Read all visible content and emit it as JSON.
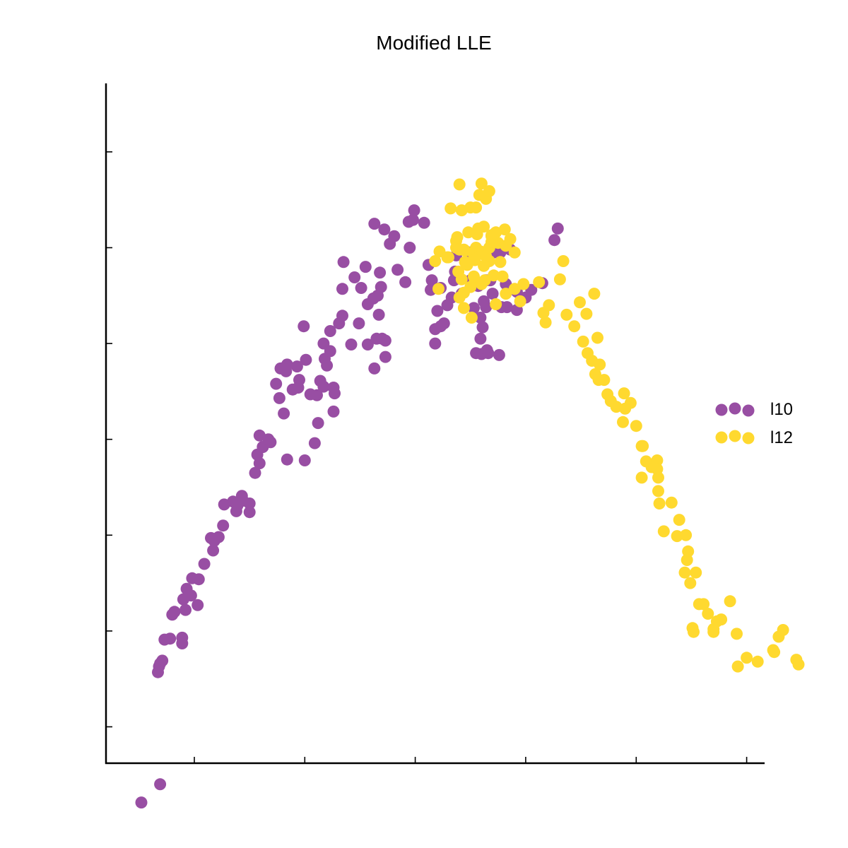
{
  "chart_data": {
    "type": "scatter",
    "title": "Modified LLE",
    "xlabel": "",
    "ylabel": "",
    "xlim": [
      -0.036,
      0.0235
    ],
    "ylim": [
      -0.0318,
      0.039
    ],
    "xticks": [
      -0.028,
      -0.018,
      -0.008,
      0.002,
      0.012,
      0.022
    ],
    "yticks": [
      -0.028,
      -0.018,
      -0.008,
      0.002,
      0.012,
      0.022,
      0.032
    ],
    "show_tick_labels": false,
    "grid": false,
    "legend_position": "right",
    "series": [
      {
        "name": "l10",
        "color": "#984ea3",
        "points": [
          [
            -0.0328,
            -0.0359
          ],
          [
            -0.0311,
            -0.034
          ],
          [
            -0.0312,
            -0.0217
          ],
          [
            -0.0313,
            -0.0223
          ],
          [
            -0.0311,
            -0.0214
          ],
          [
            -0.0309,
            -0.0211
          ],
          [
            -0.0307,
            -0.0189
          ],
          [
            -0.0302,
            -0.0188
          ],
          [
            -0.0291,
            -0.0193
          ],
          [
            -0.0291,
            -0.0187
          ],
          [
            -0.03,
            -0.0163
          ],
          [
            -0.0298,
            -0.016
          ],
          [
            -0.0288,
            -0.0158
          ],
          [
            -0.029,
            -0.0147
          ],
          [
            -0.0287,
            -0.0136
          ],
          [
            -0.0283,
            -0.0143
          ],
          [
            -0.0276,
            -0.0126
          ],
          [
            -0.0282,
            -0.0125
          ],
          [
            -0.0277,
            -0.0153
          ],
          [
            -0.0271,
            -0.011
          ],
          [
            -0.0263,
            -0.0096
          ],
          [
            -0.0262,
            -0.0086
          ],
          [
            -0.0265,
            -0.0083
          ],
          [
            -0.0258,
            -0.0082
          ],
          [
            -0.0254,
            -0.007
          ],
          [
            -0.0253,
            -0.0048
          ],
          [
            -0.0245,
            -0.0045
          ],
          [
            -0.0237,
            -0.0039
          ],
          [
            -0.0242,
            -0.0055
          ],
          [
            -0.0241,
            -0.0049
          ],
          [
            -0.0236,
            -0.0044
          ],
          [
            -0.023,
            -0.0047
          ],
          [
            -0.023,
            -0.0056
          ],
          [
            -0.0225,
            -0.0015
          ],
          [
            -0.0223,
            0.0004
          ],
          [
            -0.0218,
            0.0012
          ],
          [
            -0.0221,
            0.0024
          ],
          [
            -0.0218,
            0.0012
          ],
          [
            -0.0221,
            -0.0005
          ],
          [
            -0.0211,
            0.0017
          ],
          [
            -0.0213,
            0.002
          ],
          [
            -0.0196,
            -0.0001
          ],
          [
            -0.0199,
            0.0047
          ],
          [
            -0.0203,
            0.0063
          ],
          [
            -0.0206,
            0.0078
          ],
          [
            -0.0197,
            0.0091
          ],
          [
            -0.0196,
            0.0098
          ],
          [
            -0.0202,
            0.0094
          ],
          [
            -0.0191,
            0.0072
          ],
          [
            -0.0187,
            0.0096
          ],
          [
            -0.0179,
            0.0103
          ],
          [
            -0.0185,
            0.0082
          ],
          [
            -0.0186,
            0.0074
          ],
          [
            -0.0181,
            0.0138
          ],
          [
            -0.018,
            -0.0002
          ],
          [
            -0.0166,
            0.0081
          ],
          [
            -0.0169,
            0.0066
          ],
          [
            -0.0175,
            0.0067
          ],
          [
            -0.0168,
            0.0037
          ],
          [
            -0.0171,
            0.0016
          ],
          [
            -0.0162,
            0.0104
          ],
          [
            -0.0163,
            0.012
          ],
          [
            -0.0154,
            0.0049
          ],
          [
            -0.0153,
            0.0068
          ],
          [
            -0.0154,
            0.0074
          ],
          [
            -0.0163,
            0.0075
          ],
          [
            -0.016,
            0.0097
          ],
          [
            -0.0157,
            0.0112
          ],
          [
            -0.0157,
            0.0133
          ],
          [
            -0.0149,
            0.0141
          ],
          [
            -0.0146,
            0.0177
          ],
          [
            -0.0146,
            0.0149
          ],
          [
            -0.0145,
            0.0205
          ],
          [
            -0.0138,
            0.0119
          ],
          [
            -0.0135,
            0.0189
          ],
          [
            -0.0129,
            0.0178
          ],
          [
            -0.0131,
            0.0141
          ],
          [
            -0.0125,
            0.02
          ],
          [
            -0.0117,
            0.0245
          ],
          [
            -0.0123,
            0.0119
          ],
          [
            -0.0114,
            0.017
          ],
          [
            -0.0108,
            0.0239
          ],
          [
            -0.0118,
            0.0167
          ],
          [
            -0.0123,
            0.0161
          ],
          [
            -0.0115,
            0.0125
          ],
          [
            -0.0113,
            0.015
          ],
          [
            -0.0107,
            0.0123
          ],
          [
            -0.0112,
            0.0194
          ],
          [
            -0.0111,
            0.0179
          ],
          [
            -0.0117,
            0.0094
          ],
          [
            -0.011,
            0.0125
          ],
          [
            -0.0107,
            0.0106
          ],
          [
            -0.0099,
            0.0232
          ],
          [
            -0.0103,
            0.0224
          ],
          [
            -0.0096,
            0.0197
          ],
          [
            -0.0086,
            0.0247
          ],
          [
            -0.0089,
            0.0184
          ],
          [
            -0.0082,
            0.0249
          ],
          [
            -0.0085,
            0.022
          ],
          [
            -0.0081,
            0.0259
          ],
          [
            -0.0072,
            0.0246
          ],
          [
            -0.0068,
            0.0202
          ],
          [
            -0.0057,
            0.0178
          ],
          [
            -0.0065,
            0.0186
          ],
          [
            -0.0066,
            0.0176
          ],
          [
            -0.0062,
            0.0135
          ],
          [
            -0.0062,
            0.012
          ],
          [
            -0.0054,
            0.0141
          ],
          [
            -0.0051,
            0.016
          ],
          [
            -0.0047,
            0.0168
          ],
          [
            -0.0045,
            0.0186
          ],
          [
            -0.003,
            0.0186
          ],
          [
            -0.0038,
            0.0172
          ],
          [
            -0.0044,
            0.0195
          ],
          [
            -0.0043,
            0.0212
          ],
          [
            -0.006,
            0.0154
          ],
          [
            -0.0057,
            0.0138
          ],
          [
            -0.0027,
            0.0157
          ],
          [
            -0.0026,
            0.0184
          ],
          [
            -0.0023,
            0.018
          ],
          [
            -0.0012,
            0.0186
          ],
          [
            -0.0016,
            0.0158
          ],
          [
            -0.0016,
            0.0186
          ],
          [
            -0.0018,
            0.0164
          ],
          [
            -0.001,
            0.0172
          ],
          [
            -0.0021,
            0.0125
          ],
          [
            -0.0021,
            0.0147
          ],
          [
            -0.0019,
            0.0137
          ],
          [
            -0.0015,
            0.0113
          ],
          [
            -0.0002,
            0.0158
          ],
          [
            -0.0004,
            0.0108
          ],
          [
            -0.002,
            0.0109
          ],
          [
            -0.0025,
            0.011
          ],
          [
            -0.0014,
            0.011
          ],
          [
            -0.0003,
            0.0215
          ],
          [
            -0.0033,
            0.0204
          ],
          [
            -0.003,
            0.0215
          ],
          [
            -0.0009,
            0.0215
          ],
          [
            0.0006,
            0.0218
          ],
          [
            0.0002,
            0.0182
          ],
          [
            0.0012,
            0.0174
          ],
          [
            0.0025,
            0.0176
          ],
          [
            0.0035,
            0.0183
          ],
          [
            0.0046,
            0.0228
          ],
          [
            0.0049,
            0.024
          ],
          [
            0.0003,
            0.0158
          ],
          [
            0.0012,
            0.0155
          ],
          [
            0.002,
            0.0168
          ]
        ]
      },
      {
        "name": "l12",
        "color": "#ffd92f",
        "points": [
          [
            -0.005,
            0.021
          ],
          [
            -0.0043,
            0.022
          ],
          [
            -0.0043,
            0.0227
          ],
          [
            -0.0041,
            0.0195
          ],
          [
            -0.004,
            0.0218
          ],
          [
            -0.0048,
            0.0261
          ],
          [
            -0.0038,
            0.0259
          ],
          [
            -0.003,
            0.0262
          ],
          [
            -0.0025,
            0.0262
          ],
          [
            -0.0032,
            0.0236
          ],
          [
            -0.0025,
            0.022
          ],
          [
            -0.0035,
            0.0217
          ],
          [
            -0.0027,
            0.0213
          ],
          [
            -0.0021,
            0.0216
          ],
          [
            -0.0026,
            0.0186
          ],
          [
            -0.0017,
            0.0186
          ],
          [
            -0.003,
            0.0179
          ],
          [
            -0.0036,
            0.0173
          ],
          [
            -0.0038,
            0.0187
          ],
          [
            -0.0035,
            0.0205
          ],
          [
            -0.0026,
            0.0207
          ],
          [
            -0.0019,
            0.0215
          ],
          [
            -0.0013,
            0.0206
          ],
          [
            -0.0016,
            0.0211
          ],
          [
            -0.0011,
            0.0233
          ],
          [
            -0.0009,
            0.023
          ],
          [
            -0.0005,
            0.0225
          ],
          [
            0.0002,
            0.0222
          ],
          [
            0.0006,
            0.0229
          ],
          [
            0.001,
            0.0215
          ],
          [
            -0.0018,
            0.0242
          ],
          [
            -0.0013,
            0.022
          ],
          [
            -0.0024,
            0.0234
          ],
          [
            -0.002,
            0.0287
          ],
          [
            -0.0023,
            0.024
          ],
          [
            -0.0016,
            0.0271
          ],
          [
            -0.0011,
            0.0232
          ],
          [
            -0.0007,
            0.0236
          ],
          [
            -0.0011,
            0.0226
          ],
          [
            -0.0008,
            0.0235
          ],
          [
            -0.0027,
            0.019
          ],
          [
            -0.002,
            0.0182
          ],
          [
            -0.0018,
            0.0201
          ],
          [
            -0.0036,
            0.0218
          ],
          [
            -0.0033,
            0.0202
          ],
          [
            -0.0036,
            0.0157
          ],
          [
            -0.0029,
            0.0147
          ],
          [
            -0.004,
            0.0168
          ],
          [
            -0.0042,
            0.0231
          ],
          [
            -0.0062,
            0.0206
          ],
          [
            -0.0058,
            0.0216
          ],
          [
            -0.0059,
            0.0177
          ],
          [
            -0.0051,
            0.021
          ],
          [
            -0.004,
            0.0286
          ],
          [
            -0.0022,
            0.0275
          ],
          [
            -0.0013,
            0.0279
          ],
          [
            0.0001,
            0.0239
          ],
          [
            -0.0009,
            0.0191
          ],
          [
            -0.0007,
            0.0161
          ],
          [
            -0.0001,
            0.019
          ],
          [
            -0.0003,
            0.0205
          ],
          [
            0.0002,
            0.0172
          ],
          [
            0.0015,
            0.0164
          ],
          [
            0.001,
            0.0177
          ],
          [
            0.0018,
            0.0182
          ],
          [
            0.0032,
            0.0184
          ],
          [
            0.0038,
            0.0142
          ],
          [
            0.0036,
            0.0152
          ],
          [
            0.0041,
            0.016
          ],
          [
            0.0051,
            0.0187
          ],
          [
            0.0054,
            0.0206
          ],
          [
            0.0057,
            0.015
          ],
          [
            0.0069,
            0.0163
          ],
          [
            0.0064,
            0.0138
          ],
          [
            0.0072,
            0.0122
          ],
          [
            0.0075,
            0.0151
          ],
          [
            0.008,
            0.0102
          ],
          [
            0.0082,
            0.0172
          ],
          [
            0.0085,
            0.0126
          ],
          [
            0.0076,
            0.011
          ],
          [
            0.0083,
            0.0088
          ],
          [
            0.0086,
            0.0082
          ],
          [
            0.0087,
            0.0098
          ],
          [
            0.0091,
            0.0082
          ],
          [
            0.0094,
            0.0067
          ],
          [
            0.0097,
            0.006
          ],
          [
            0.0102,
            0.0054
          ],
          [
            0.0109,
            0.0068
          ],
          [
            0.011,
            0.0052
          ],
          [
            0.0115,
            0.0058
          ],
          [
            0.0108,
            0.0038
          ],
          [
            0.012,
            0.0034
          ],
          [
            0.0125,
            0.0013
          ],
          [
            0.0126,
            0.0013
          ],
          [
            0.0134,
            -0.0009
          ],
          [
            0.0129,
            -0.0003
          ],
          [
            0.0125,
            -0.002
          ],
          [
            0.0139,
            -0.0002
          ],
          [
            0.0139,
            -0.0011
          ],
          [
            0.014,
            -0.0034
          ],
          [
            0.014,
            -0.002
          ],
          [
            0.0141,
            -0.0047
          ],
          [
            0.0152,
            -0.0046
          ],
          [
            0.0157,
            -0.0081
          ],
          [
            0.0145,
            -0.0076
          ],
          [
            0.0159,
            -0.0064
          ],
          [
            0.0165,
            -0.008
          ],
          [
            0.0167,
            -0.0097
          ],
          [
            0.0166,
            -0.0106
          ],
          [
            0.0164,
            -0.0119
          ],
          [
            0.0169,
            -0.013
          ],
          [
            0.0174,
            -0.0119
          ],
          [
            0.0177,
            -0.0152
          ],
          [
            0.0171,
            -0.0177
          ],
          [
            0.0172,
            -0.0181
          ],
          [
            0.0181,
            -0.0152
          ],
          [
            0.0185,
            -0.0162
          ],
          [
            0.019,
            -0.0181
          ],
          [
            0.019,
            -0.0178
          ],
          [
            0.0193,
            -0.017
          ],
          [
            0.0197,
            -0.0168
          ],
          [
            0.0205,
            -0.0149
          ],
          [
            0.0211,
            -0.0183
          ],
          [
            0.0212,
            -0.0217
          ],
          [
            0.022,
            -0.0208
          ],
          [
            0.023,
            -0.0212
          ],
          [
            0.0244,
            -0.02
          ],
          [
            0.0245,
            -0.0202
          ],
          [
            0.0249,
            -0.0186
          ],
          [
            0.0253,
            -0.0179
          ],
          [
            0.0267,
            -0.0215
          ],
          [
            0.0265,
            -0.021
          ]
        ]
      }
    ]
  }
}
